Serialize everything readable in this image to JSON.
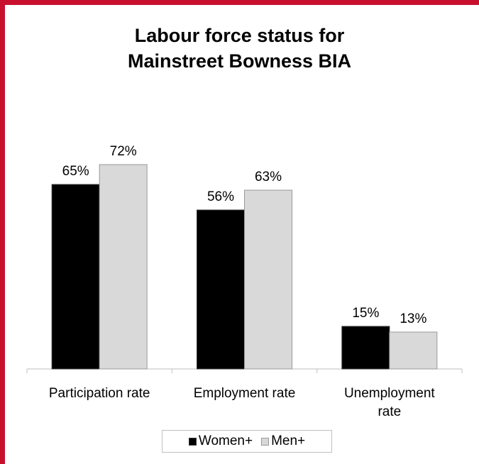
{
  "chart_data": {
    "type": "bar",
    "title_lines": [
      "Labour force status for",
      "Mainstreet Bowness BIA"
    ],
    "categories": [
      [
        "Participation rate"
      ],
      [
        "Employment rate"
      ],
      [
        "Unemployment",
        "rate"
      ]
    ],
    "series": [
      {
        "name": "Women+",
        "values": [
          65,
          56,
          15
        ],
        "labels": [
          "65%",
          "56%",
          "15%"
        ],
        "color": "#000000",
        "stroke": "#333333"
      },
      {
        "name": "Men+",
        "values": [
          72,
          63,
          13
        ],
        "labels": [
          "72%",
          "63%",
          "13%"
        ],
        "color": "#d9d9d9",
        "stroke": "#999999"
      }
    ],
    "ylim": [
      0,
      80
    ],
    "grid": false,
    "legend_position": "bottom",
    "xlabel": "",
    "ylabel": ""
  }
}
